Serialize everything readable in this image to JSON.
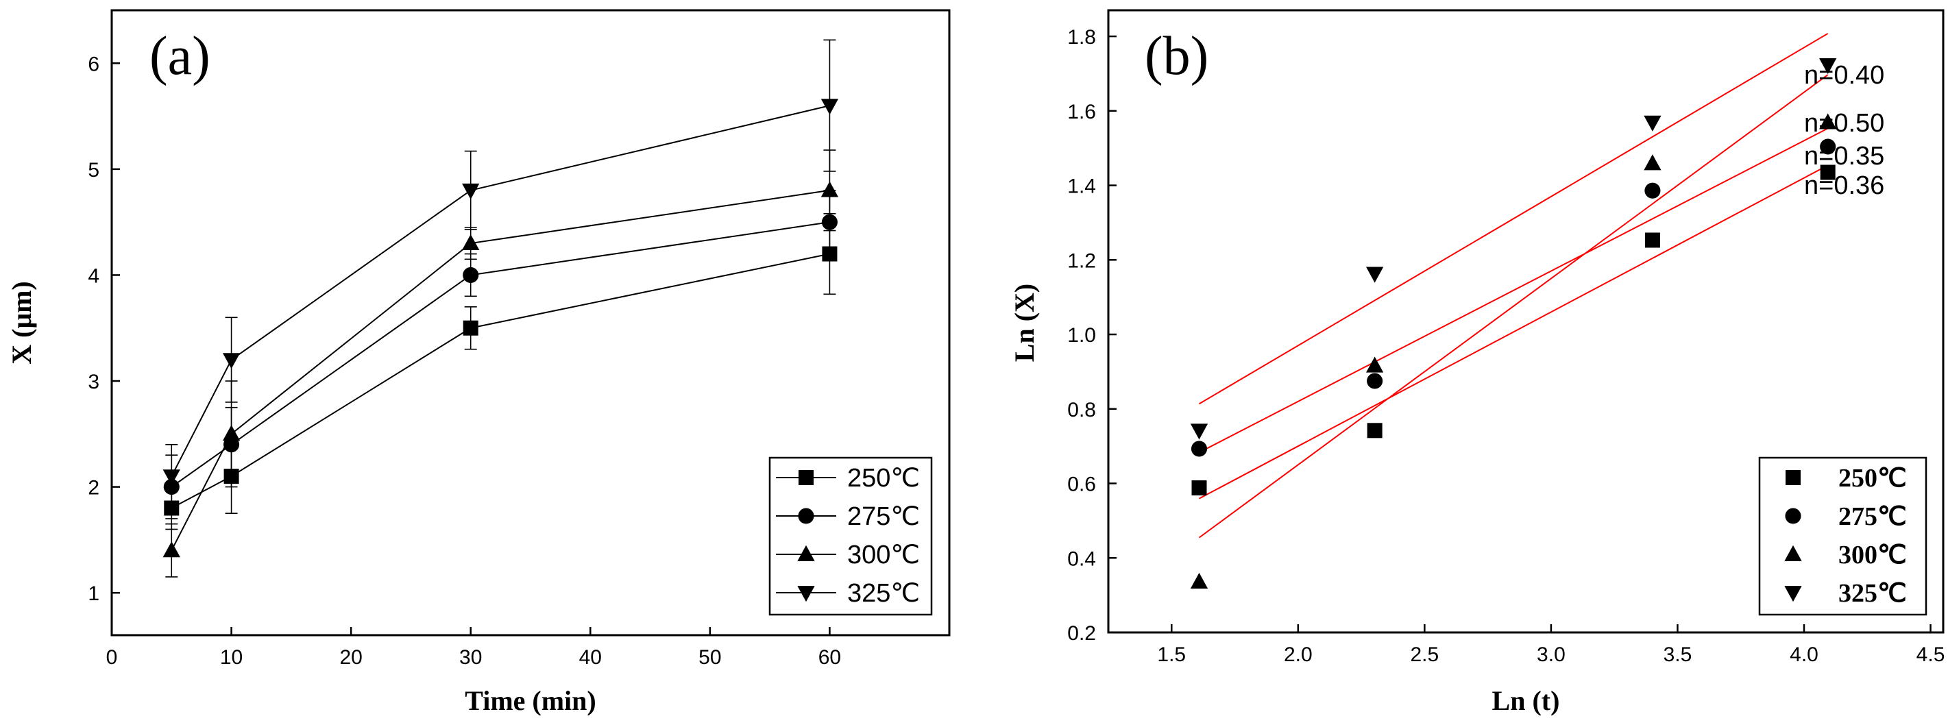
{
  "chart_data": [
    {
      "panel_label": "(a)",
      "type": "line",
      "xlabel": "Time (min)",
      "ylabel": "X (μm)",
      "xlim": [
        0,
        70
      ],
      "ylim": [
        0.6,
        6.5
      ],
      "xticks": [
        0,
        10,
        20,
        30,
        40,
        50,
        60
      ],
      "yticks": [
        1,
        2,
        3,
        4,
        5,
        6
      ],
      "x": [
        5,
        10,
        30,
        60
      ],
      "legend_position": "bottom-right",
      "series": [
        {
          "name": "250℃",
          "marker": "square",
          "values": [
            1.8,
            2.1,
            3.5,
            4.2
          ],
          "errors": [
            0.2,
            0.35,
            0.2,
            0.38
          ]
        },
        {
          "name": "275℃",
          "marker": "circle",
          "values": [
            2.0,
            2.4,
            4.0,
            4.5
          ],
          "errors": [
            0.3,
            0.35,
            0.2,
            0.3
          ]
        },
        {
          "name": "300℃",
          "marker": "triangle-up",
          "values": [
            1.4,
            2.5,
            4.3,
            4.8
          ],
          "errors": [
            0.25,
            0.5,
            0.15,
            0.38
          ]
        },
        {
          "name": "325℃",
          "marker": "triangle-down",
          "values": [
            2.1,
            3.2,
            4.8,
            5.6
          ],
          "errors": [
            0.3,
            0.4,
            0.37,
            0.62
          ]
        }
      ]
    },
    {
      "panel_label": "(b)",
      "type": "scatter",
      "xlabel": "Ln (t)",
      "ylabel": "Ln (X)",
      "xlim": [
        1.25,
        4.55
      ],
      "ylim": [
        0.2,
        1.87
      ],
      "xticks": [
        1.5,
        2.0,
        2.5,
        3.0,
        3.5,
        4.0,
        4.5
      ],
      "yticks": [
        0.2,
        0.4,
        0.6,
        0.8,
        1.0,
        1.2,
        1.4,
        1.6,
        1.8
      ],
      "x": [
        1.609,
        2.303,
        3.401,
        4.094
      ],
      "legend_position": "bottom-right",
      "series": [
        {
          "name": "250℃",
          "marker": "square",
          "values": [
            0.588,
            0.742,
            1.253,
            1.435
          ],
          "fit": {
            "slope": 0.36,
            "intercept": -0.02,
            "x_range": [
              1.609,
              4.094
            ]
          }
        },
        {
          "name": "275℃",
          "marker": "circle",
          "values": [
            0.693,
            0.875,
            1.386,
            1.504
          ],
          "fit": {
            "slope": 0.35,
            "intercept": 0.12,
            "x_range": [
              1.609,
              4.094
            ]
          }
        },
        {
          "name": "300℃",
          "marker": "triangle-up",
          "values": [
            0.336,
            0.916,
            1.459,
            1.569
          ],
          "fit": {
            "slope": 0.5,
            "intercept": -0.35,
            "x_range": [
              1.609,
              4.094
            ]
          }
        },
        {
          "name": "325℃",
          "marker": "triangle-down",
          "values": [
            0.742,
            1.163,
            1.569,
            1.723
          ],
          "fit": {
            "slope": 0.4,
            "intercept": 0.17,
            "x_range": [
              1.609,
              4.094
            ]
          }
        }
      ],
      "annotations": [
        "n=0.40",
        "n=0.50",
        "n=0.35",
        "n=0.36"
      ]
    }
  ]
}
